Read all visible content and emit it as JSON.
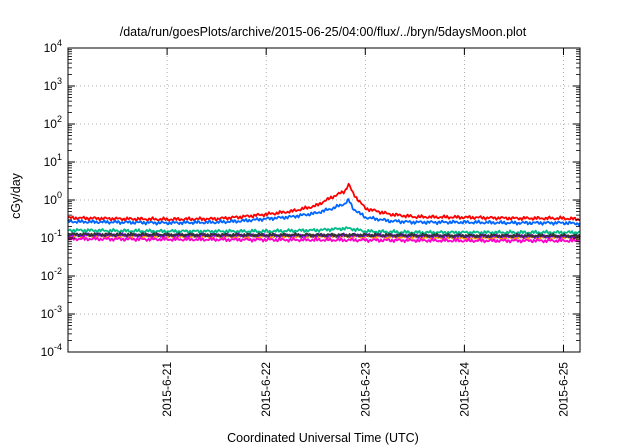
{
  "chart_data": {
    "type": "line",
    "title": "/data/run/goesPlots/archive/2015-06-25/04:00/flux/../bryn/5daysMoon.plot",
    "xlabel": "Coordinated Universal Time (UTC)",
    "ylabel": "cGy/day",
    "yscale": "log",
    "ylim": [
      0.0001,
      10000
    ],
    "y_ticks": [
      {
        "base": "10",
        "exp": "-4"
      },
      {
        "base": "10",
        "exp": "-3"
      },
      {
        "base": "10",
        "exp": "-2"
      },
      {
        "base": "10",
        "exp": "-1"
      },
      {
        "base": "10",
        "exp": "0"
      },
      {
        "base": "10",
        "exp": "1"
      },
      {
        "base": "10",
        "exp": "2"
      },
      {
        "base": "10",
        "exp": "3"
      },
      {
        "base": "10",
        "exp": "4"
      }
    ],
    "xlim": [
      "2015-06-20 00:00",
      "2015-06-25 04:00"
    ],
    "x_ticks": [
      "2015-6-21",
      "2015-6-22",
      "2015-6-23",
      "2015-6-24",
      "2015-6-25"
    ],
    "grid": true,
    "series": [
      {
        "color": "#ff0000",
        "x": [
          "2015-06-20 00:00",
          "2015-06-20 12:00",
          "2015-06-21 00:00",
          "2015-06-21 12:00",
          "2015-06-21 18:00",
          "2015-06-22 00:00",
          "2015-06-22 06:00",
          "2015-06-22 12:00",
          "2015-06-22 16:00",
          "2015-06-22 19:00",
          "2015-06-22 20:00",
          "2015-06-22 21:00",
          "2015-06-23 00:00",
          "2015-06-23 06:00",
          "2015-06-23 12:00",
          "2015-06-24 00:00",
          "2015-06-24 12:00",
          "2015-06-25 00:00",
          "2015-06-25 04:00"
        ],
        "values": [
          0.34,
          0.32,
          0.31,
          0.32,
          0.36,
          0.42,
          0.5,
          0.7,
          1.2,
          1.7,
          2.6,
          1.5,
          0.6,
          0.42,
          0.36,
          0.35,
          0.33,
          0.33,
          0.31
        ]
      },
      {
        "color": "#0066ff",
        "x": [
          "2015-06-20 00:00",
          "2015-06-20 12:00",
          "2015-06-21 00:00",
          "2015-06-21 12:00",
          "2015-06-21 18:00",
          "2015-06-22 00:00",
          "2015-06-22 06:00",
          "2015-06-22 12:00",
          "2015-06-22 16:00",
          "2015-06-22 19:00",
          "2015-06-22 20:00",
          "2015-06-22 21:00",
          "2015-06-23 00:00",
          "2015-06-23 06:00",
          "2015-06-23 12:00",
          "2015-06-24 00:00",
          "2015-06-24 12:00",
          "2015-06-25 00:00",
          "2015-06-25 04:00"
        ],
        "values": [
          0.27,
          0.26,
          0.25,
          0.26,
          0.28,
          0.32,
          0.36,
          0.45,
          0.6,
          0.8,
          1.0,
          0.6,
          0.35,
          0.28,
          0.26,
          0.26,
          0.25,
          0.25,
          0.24
        ]
      },
      {
        "color": "#00bb88",
        "x": [
          "2015-06-20 00:00",
          "2015-06-21 00:00",
          "2015-06-21 12:00",
          "2015-06-22 00:00",
          "2015-06-22 12:00",
          "2015-06-22 20:00",
          "2015-06-23 00:00",
          "2015-06-23 12:00",
          "2015-06-24 00:00",
          "2015-06-25 00:00",
          "2015-06-25 04:00"
        ],
        "values": [
          0.16,
          0.15,
          0.15,
          0.15,
          0.16,
          0.18,
          0.15,
          0.14,
          0.14,
          0.14,
          0.14
        ]
      },
      {
        "color": "#ff9900",
        "x": [
          "2015-06-20 00:00",
          "2015-06-21 00:00",
          "2015-06-22 00:00",
          "2015-06-23 00:00",
          "2015-06-24 00:00",
          "2015-06-25 00:00",
          "2015-06-25 04:00"
        ],
        "values": [
          0.115,
          0.11,
          0.11,
          0.11,
          0.1,
          0.105,
          0.1
        ]
      },
      {
        "color": "#8800ff",
        "x": [
          "2015-06-20 00:00",
          "2015-06-21 00:00",
          "2015-06-22 00:00",
          "2015-06-23 00:00",
          "2015-06-24 00:00",
          "2015-06-25 00:00",
          "2015-06-25 04:00"
        ],
        "values": [
          0.12,
          0.118,
          0.117,
          0.117,
          0.112,
          0.11,
          0.11
        ]
      },
      {
        "color": "#333333",
        "x": [
          "2015-06-20 00:00",
          "2015-06-21 00:00",
          "2015-06-22 00:00",
          "2015-06-23 00:00",
          "2015-06-24 00:00",
          "2015-06-25 00:00",
          "2015-06-25 04:00"
        ],
        "values": [
          0.125,
          0.122,
          0.12,
          0.12,
          0.115,
          0.115,
          0.112
        ]
      },
      {
        "color": "#ff00cc",
        "x": [
          "2015-06-20 00:00",
          "2015-06-21 00:00",
          "2015-06-22 00:00",
          "2015-06-23 00:00",
          "2015-06-24 00:00",
          "2015-06-25 00:00",
          "2015-06-25 04:00"
        ],
        "values": [
          0.095,
          0.092,
          0.09,
          0.088,
          0.085,
          0.085,
          0.085
        ]
      }
    ]
  }
}
